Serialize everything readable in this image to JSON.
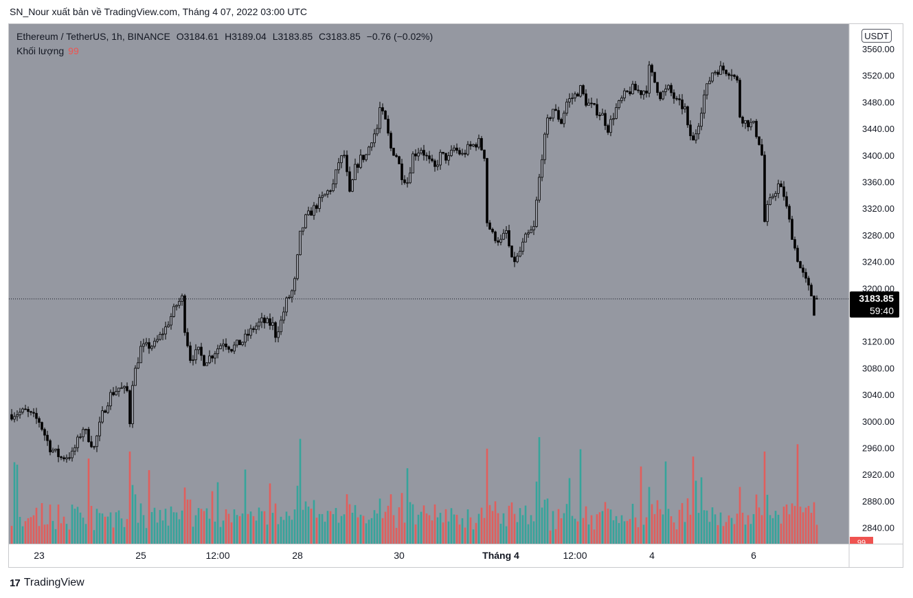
{
  "attribution": "SN_Nour xuất bản về TradingView.com, Tháng 4 07, 2022 03:00 UTC",
  "legend": {
    "symbol": "Ethereum / TetherUS, 1h, BINANCE",
    "open": "O3184.61",
    "high": "H3189.04",
    "low": "L3183.85",
    "close": "C3183.85",
    "change": "−0.76 (−0.02%)",
    "volume_label": "Khối lượng",
    "volume_value": "99"
  },
  "currency_button": "USDT",
  "last_price": "3183.85",
  "countdown": "59:40",
  "volume_tag": "99",
  "brand": {
    "logo": "17",
    "name": "TradingView"
  },
  "colors": {
    "plot_bg": "#9598a1",
    "candle": "#000000",
    "volume_up": "#26a69a",
    "volume_down": "#ef5350",
    "price_tag": "#000000"
  },
  "chart_data": {
    "type": "candlestick",
    "symbol": "ETH/USDT",
    "interval": "1h",
    "y_axis_ticks": [
      "3560.00",
      "3520.00",
      "3480.00",
      "3440.00",
      "3400.00",
      "3360.00",
      "3320.00",
      "3280.00",
      "3240.00",
      "3200.00",
      "3120.00",
      "3080.00",
      "3040.00",
      "3000.00",
      "2960.00",
      "2920.00",
      "2880.00",
      "2840.00"
    ],
    "ylim": [
      2818,
      3600
    ],
    "x_axis_labels": [
      "23",
      "25",
      "12:00",
      "28",
      "30",
      "Tháng 4",
      "12:00",
      "4",
      "6"
    ],
    "x_axis_label_bars": [
      10,
      47,
      75,
      104,
      141,
      178,
      205,
      233,
      270
    ],
    "bar_count": 294,
    "price_path": [
      [
        0,
        3010
      ],
      [
        5,
        3015
      ],
      [
        10,
        3000
      ],
      [
        14,
        2960
      ],
      [
        18,
        2945
      ],
      [
        22,
        2950
      ],
      [
        26,
        2990
      ],
      [
        30,
        2960
      ],
      [
        33,
        3010
      ],
      [
        36,
        3040
      ],
      [
        39,
        3050
      ],
      [
        42,
        3045
      ],
      [
        43,
        3000
      ],
      [
        44,
        3060
      ],
      [
        47,
        3110
      ],
      [
        52,
        3115
      ],
      [
        56,
        3140
      ],
      [
        60,
        3175
      ],
      [
        62,
        3185
      ],
      [
        63,
        3140
      ],
      [
        65,
        3095
      ],
      [
        68,
        3105
      ],
      [
        70,
        3090
      ],
      [
        73,
        3100
      ],
      [
        77,
        3120
      ],
      [
        80,
        3110
      ],
      [
        84,
        3120
      ],
      [
        88,
        3140
      ],
      [
        91,
        3150
      ],
      [
        95,
        3145
      ],
      [
        96,
        3130
      ],
      [
        98,
        3150
      ],
      [
        100,
        3180
      ],
      [
        102,
        3195
      ],
      [
        103,
        3210
      ],
      [
        105,
        3280
      ],
      [
        107,
        3305
      ],
      [
        110,
        3320
      ],
      [
        113,
        3335
      ],
      [
        117,
        3355
      ],
      [
        119,
        3390
      ],
      [
        121,
        3400
      ],
      [
        123,
        3340
      ],
      [
        125,
        3380
      ],
      [
        127,
        3395
      ],
      [
        129,
        3400
      ],
      [
        131,
        3425
      ],
      [
        133,
        3440
      ],
      [
        134,
        3470
      ],
      [
        136,
        3450
      ],
      [
        138,
        3410
      ],
      [
        140,
        3400
      ],
      [
        142,
        3370
      ],
      [
        144,
        3360
      ],
      [
        146,
        3400
      ],
      [
        149,
        3410
      ],
      [
        152,
        3390
      ],
      [
        154,
        3380
      ],
      [
        156,
        3400
      ],
      [
        159,
        3395
      ],
      [
        161,
        3410
      ],
      [
        164,
        3400
      ],
      [
        166,
        3410
      ],
      [
        170,
        3420
      ],
      [
        172,
        3400
      ],
      [
        173,
        3300
      ],
      [
        175,
        3280
      ],
      [
        178,
        3270
      ],
      [
        180,
        3285
      ],
      [
        182,
        3240
      ],
      [
        184,
        3245
      ],
      [
        187,
        3275
      ],
      [
        190,
        3290
      ],
      [
        191,
        3330
      ],
      [
        193,
        3400
      ],
      [
        195,
        3450
      ],
      [
        197,
        3470
      ],
      [
        200,
        3450
      ],
      [
        202,
        3480
      ],
      [
        205,
        3490
      ],
      [
        207,
        3500
      ],
      [
        209,
        3480
      ],
      [
        212,
        3470
      ],
      [
        215,
        3460
      ],
      [
        217,
        3440
      ],
      [
        220,
        3470
      ],
      [
        223,
        3490
      ],
      [
        226,
        3500
      ],
      [
        229,
        3495
      ],
      [
        231,
        3500
      ],
      [
        232,
        3530
      ],
      [
        234,
        3510
      ],
      [
        236,
        3490
      ],
      [
        239,
        3500
      ],
      [
        242,
        3480
      ],
      [
        245,
        3470
      ],
      [
        246,
        3440
      ],
      [
        248,
        3420
      ],
      [
        250,
        3450
      ],
      [
        252,
        3490
      ],
      [
        255,
        3525
      ],
      [
        258,
        3530
      ],
      [
        262,
        3525
      ],
      [
        264,
        3510
      ],
      [
        265,
        3460
      ],
      [
        267,
        3450
      ],
      [
        270,
        3445
      ],
      [
        272,
        3420
      ],
      [
        273,
        3400
      ],
      [
        274,
        3300
      ],
      [
        275,
        3320
      ],
      [
        277,
        3340
      ],
      [
        279,
        3355
      ],
      [
        281,
        3340
      ],
      [
        283,
        3300
      ],
      [
        285,
        3260
      ],
      [
        287,
        3230
      ],
      [
        289,
        3210
      ],
      [
        291,
        3190
      ],
      [
        292,
        3165
      ],
      [
        293,
        3184
      ]
    ]
  }
}
